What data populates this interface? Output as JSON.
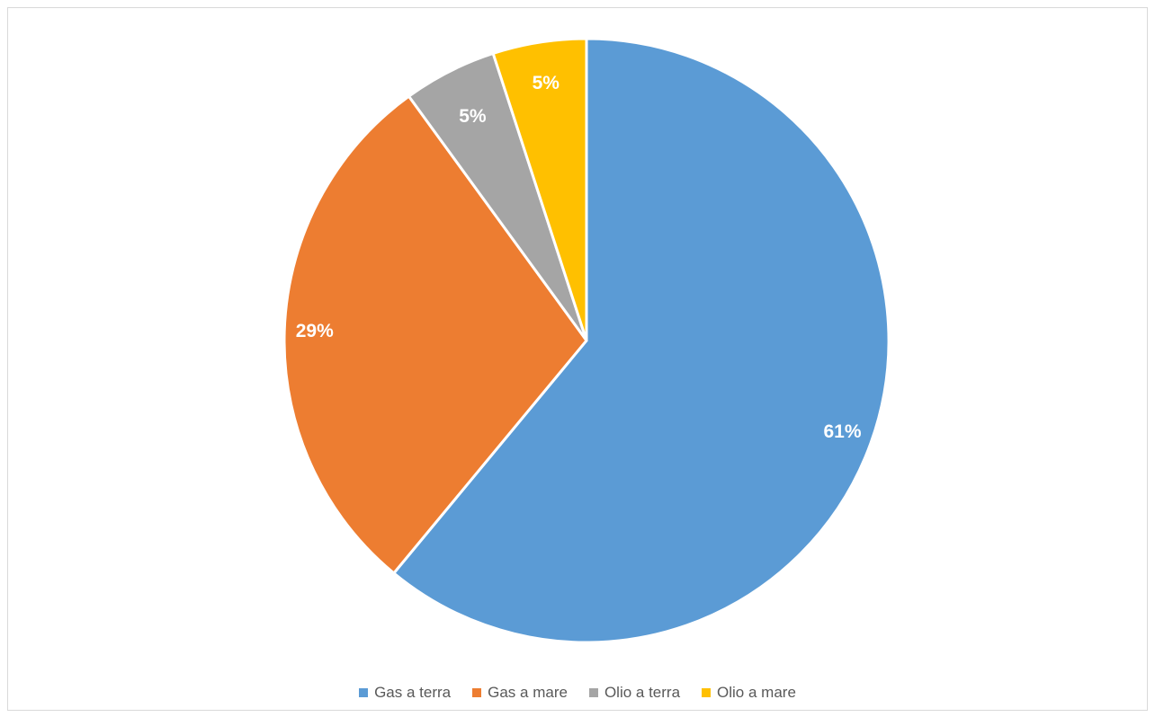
{
  "chart_data": {
    "type": "pie",
    "start_angle": "12 o'clock",
    "direction": "clockwise",
    "legend": "bottom",
    "slices": [
      {
        "label": "Gas a terra",
        "value": 61,
        "display": "61%",
        "color": "#5b9bd5"
      },
      {
        "label": "Gas a mare",
        "value": 29,
        "display": "29%",
        "color": "#ed7d31"
      },
      {
        "label": "Olio a terra",
        "value": 5,
        "display": "5%",
        "color": "#a5a5a5"
      },
      {
        "label": "Olio a mare",
        "value": 5,
        "display": "5%",
        "color": "#ffc000"
      }
    ]
  }
}
